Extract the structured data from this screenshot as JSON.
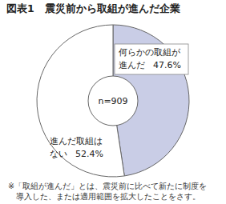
{
  "chart_data": {
    "type": "pie",
    "title": "図表1　震災前から取組が進んだ企業",
    "categories": [
      "何らかの取組が\n進んだ",
      "進んだ取組は\nない"
    ],
    "values": [
      47.6,
      52.4
    ],
    "value_labels": [
      "47.6%",
      "52.4%"
    ],
    "colors": [
      "#c9cde6",
      "#ffffff"
    ],
    "data_labels": true,
    "center_label": "n=909",
    "footnote": "※「取組が進んだ」とは、震災前に比べて新たに制度を\n導入した、または適用範囲を拡大したことをさす。"
  }
}
